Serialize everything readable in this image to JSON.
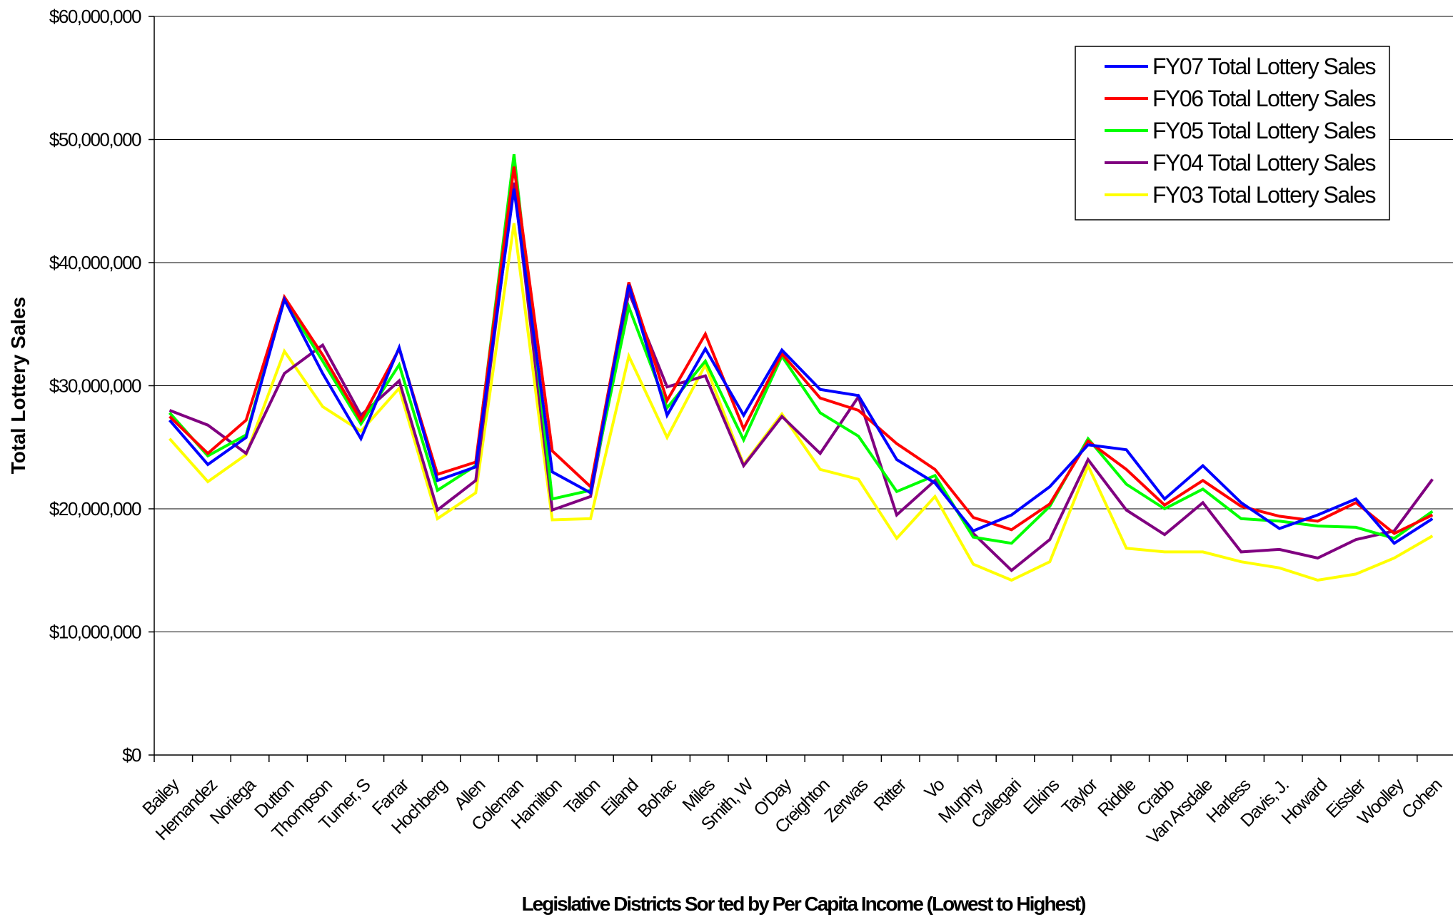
{
  "chart_data": {
    "type": "line",
    "title": "",
    "xlabel": "Legislative Districts Sor ted by Per Capita Income (Lowest to Highest)",
    "ylabel": "Total  Lottery Sales",
    "ylim": [
      0,
      60000000
    ],
    "yticks": [
      0,
      10000000,
      20000000,
      30000000,
      40000000,
      50000000,
      60000000
    ],
    "ytick_labels": [
      "$0",
      "$10,000,000",
      "$20,000,000",
      "$30,000,000",
      "$40,000,000",
      "$50,000,000",
      "$60,000,000"
    ],
    "grid": true,
    "legend_position": "top-right",
    "categories": [
      "Bailey",
      "Hernandez",
      "Noriega",
      "Dutton",
      "Thompson",
      "Turner, S",
      "Farrar",
      "Hochberg",
      "Allen",
      "Coleman",
      "Hamilton",
      "Talton",
      "Eiland",
      "Bohac",
      "Miles",
      "Smith, W",
      "O'Day",
      "Creighton",
      "Zerwas",
      "Ritter",
      "Vo",
      "Murphy",
      "Callegari",
      "Elkins",
      "Taylor",
      "Riddle",
      "Crabb",
      "Van Arsdale",
      "Harless",
      "Davis, J.",
      "Howard",
      "Eissler",
      "Woolley",
      "Cohen"
    ],
    "series": [
      {
        "name": "FY07 Total Lottery Sales",
        "color": "#0000ff",
        "values": [
          27200000,
          23600000,
          25800000,
          37000000,
          31000000,
          25700000,
          33100000,
          22300000,
          23400000,
          46000000,
          23000000,
          21300000,
          38200000,
          27600000,
          33000000,
          27600000,
          32900000,
          29700000,
          29200000,
          24000000,
          22100000,
          18200000,
          19500000,
          21800000,
          25200000,
          24800000,
          20800000,
          23500000,
          20500000,
          18400000,
          19500000,
          20800000,
          17200000,
          19200000
        ]
      },
      {
        "name": "FY06 Total Lottery Sales",
        "color": "#ff0000",
        "values": [
          27500000,
          24500000,
          27200000,
          37200000,
          32500000,
          27200000,
          33000000,
          22800000,
          23800000,
          47800000,
          24700000,
          21800000,
          38400000,
          28800000,
          34200000,
          26500000,
          32600000,
          29000000,
          28000000,
          25300000,
          23200000,
          19300000,
          18300000,
          20400000,
          25500000,
          23200000,
          20300000,
          22300000,
          20200000,
          19400000,
          19000000,
          20500000,
          18000000,
          19500000
        ]
      },
      {
        "name": "FY05 Total Lottery Sales",
        "color": "#00ff00",
        "values": [
          27800000,
          24300000,
          26000000,
          37000000,
          32000000,
          26900000,
          31700000,
          21500000,
          23500000,
          48800000,
          20800000,
          21500000,
          36400000,
          28200000,
          32000000,
          25600000,
          32400000,
          27800000,
          25900000,
          21400000,
          22700000,
          17700000,
          17200000,
          20200000,
          25700000,
          22000000,
          20000000,
          21600000,
          19200000,
          19000000,
          18600000,
          18500000,
          17600000,
          19800000
        ]
      },
      {
        "name": "FY04 Total Lottery Sales",
        "color": "#800080",
        "values": [
          28000000,
          26800000,
          24500000,
          31000000,
          33300000,
          27600000,
          30400000,
          19900000,
          22300000,
          46500000,
          19900000,
          21000000,
          37600000,
          29900000,
          30800000,
          23500000,
          27500000,
          24500000,
          29100000,
          19500000,
          22300000,
          18000000,
          15000000,
          17500000,
          24000000,
          19900000,
          17900000,
          20500000,
          16500000,
          16700000,
          16000000,
          17500000,
          18200000,
          22400000
        ]
      },
      {
        "name": "FY03 Total Lottery Sales",
        "color": "#ffff00",
        "values": [
          25700000,
          22200000,
          24400000,
          32800000,
          28300000,
          26300000,
          29800000,
          19200000,
          21300000,
          43200000,
          19100000,
          19200000,
          32400000,
          25800000,
          31700000,
          23600000,
          27700000,
          23200000,
          22400000,
          17600000,
          21000000,
          15500000,
          14200000,
          15700000,
          23500000,
          16800000,
          16500000,
          16500000,
          15700000,
          15200000,
          14200000,
          14700000,
          16000000,
          17800000
        ]
      }
    ]
  }
}
